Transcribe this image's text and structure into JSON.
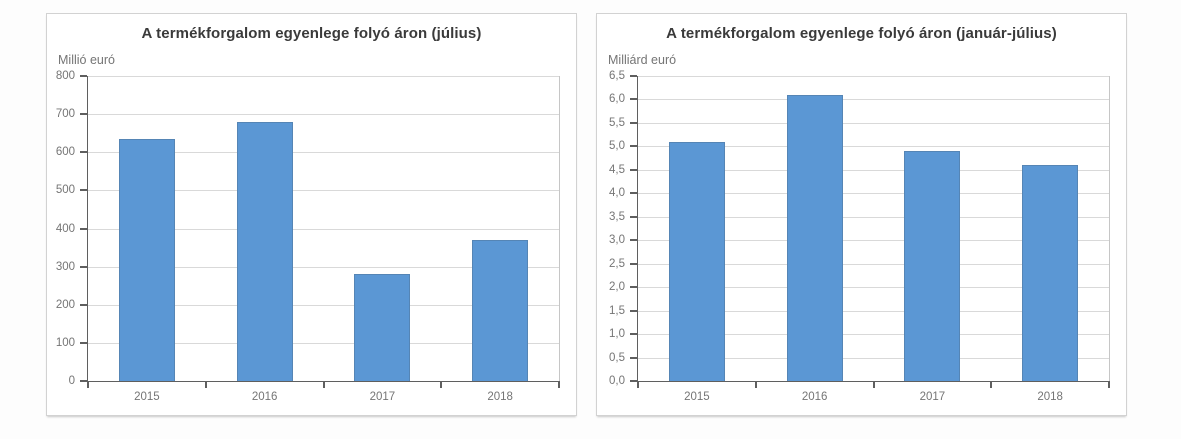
{
  "window": {
    "background": "#fdfdfd"
  },
  "style": {
    "bar_fill": "#5b97d4",
    "bar_edge": "#5585b5",
    "gridline_color": "#d9d9d9",
    "axis_color": "#5f5f5f",
    "tick_label_color": "#757575",
    "title_color": "#3a3a3a",
    "panel_border": "#d2d2d2",
    "panel_background": "#ffffff",
    "window_background": "#fdfdfd"
  },
  "chart_data": [
    {
      "type": "bar",
      "title": "A termékforgalom egyenlege folyó áron (július)",
      "unit_label": "Millió euró",
      "categories": [
        "2015",
        "2016",
        "2017",
        "2018"
      ],
      "values": [
        635,
        679,
        281,
        371
      ],
      "ylim": [
        0,
        800
      ],
      "ytick_step": 100,
      "ytick_labels": [
        "800",
        "700",
        "600",
        "500",
        "400",
        "300",
        "200",
        "100",
        "0"
      ],
      "grid": true,
      "legend": "none",
      "bar_color": "#5b97d4"
    },
    {
      "type": "bar",
      "title": "A termékforgalom egyenlege folyó áron (január-július)",
      "unit_label": "Milliárd euró",
      "categories": [
        "2015",
        "2016",
        "2017",
        "2018"
      ],
      "values": [
        5.1,
        6.1,
        4.9,
        4.6
      ],
      "ylim": [
        0,
        6.5
      ],
      "ytick_step": 0.5,
      "ytick_labels": [
        "6,5",
        "6,0",
        "5,5",
        "5,0",
        "4,5",
        "4,0",
        "3,5",
        "3,0",
        "2,5",
        "2,0",
        "1,5",
        "1,0",
        "0,5",
        "0,0"
      ],
      "grid": true,
      "legend": "none",
      "bar_color": "#5b97d4"
    }
  ]
}
